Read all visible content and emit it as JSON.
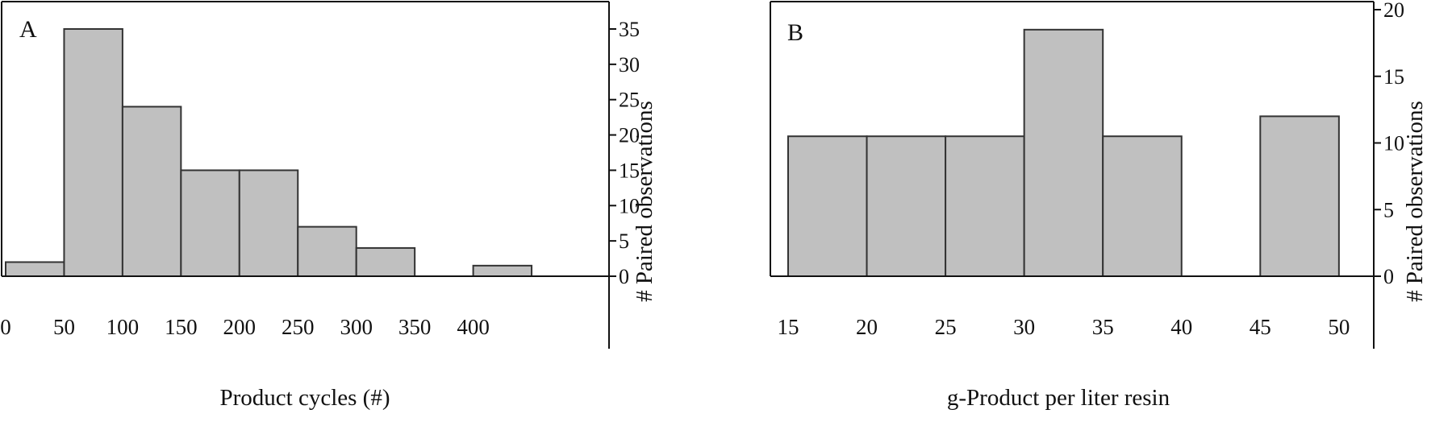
{
  "chart_data": [
    {
      "type": "bar",
      "panel_label": "A",
      "title": "",
      "xlabel": "Product cycles (#)",
      "ylabel": "# Paired observations",
      "bin_edges": [
        0,
        50,
        100,
        150,
        200,
        250,
        300,
        350,
        400,
        450
      ],
      "values": [
        2,
        35,
        24,
        15,
        15,
        7,
        4,
        0,
        1.5
      ],
      "x_ticks": [
        "0",
        "50",
        "100",
        "150",
        "200",
        "250",
        "300",
        "350",
        "400"
      ],
      "y_ticks": [
        0,
        5,
        10,
        15,
        20,
        25,
        30,
        35
      ],
      "xlim": [
        0,
        450
      ],
      "ylim": [
        0,
        35
      ],
      "bar_color": "#c0c0c0",
      "edge_color": "#333333",
      "grid": false,
      "y_axis_side": "right"
    },
    {
      "type": "bar",
      "panel_label": "B",
      "title": "",
      "xlabel": "g-Product per liter resin",
      "ylabel": "# Paired observations",
      "bin_edges": [
        15,
        20,
        25,
        30,
        35,
        40,
        45,
        50
      ],
      "values": [
        10.5,
        10.5,
        10.5,
        18.5,
        10.5,
        0,
        12
      ],
      "x_ticks": [
        "15",
        "20",
        "25",
        "30",
        "35",
        "40",
        "45",
        "50"
      ],
      "y_ticks": [
        0,
        5,
        10,
        15,
        20
      ],
      "xlim": [
        13.8,
        51.5
      ],
      "ylim": [
        0,
        20
      ],
      "bar_color": "#c0c0c0",
      "edge_color": "#333333",
      "grid": false,
      "y_axis_side": "right"
    }
  ]
}
